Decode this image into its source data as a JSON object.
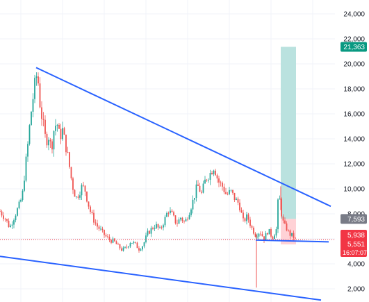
{
  "chart_data": {
    "type": "candlestick",
    "y_axis": {
      "min": 1000,
      "max": 25000,
      "position": "right",
      "ticks": [
        2000,
        4000,
        6000,
        8000,
        10000,
        12000,
        14000,
        16000,
        18000,
        20000,
        22000,
        24000
      ],
      "tick_labels": [
        "2,000",
        "4,000",
        "6,000",
        "8,000",
        "10,000",
        "12,000",
        "14,000",
        "16,000",
        "18,000",
        "20,000",
        "22,000",
        "24,000"
      ]
    },
    "grid": true,
    "colors": {
      "up": "#26a69a",
      "down": "#ef5350",
      "trendline": "#2962ff",
      "target_zone": "#b2dfdb",
      "stop_zone": "#ffcdd2",
      "last_price": "#f23645",
      "target_badge": "#089981",
      "stop_badge": "#787b86",
      "grid": "#f0f3fa"
    },
    "price_path": [
      [
        0,
        8200
      ],
      [
        8,
        7600
      ],
      [
        14,
        6900
      ],
      [
        20,
        7700
      ],
      [
        27,
        8600
      ],
      [
        32,
        9400
      ],
      [
        36,
        11500
      ],
      [
        40,
        13500
      ],
      [
        44,
        15800
      ],
      [
        48,
        17500
      ],
      [
        52,
        19100
      ],
      [
        55,
        18500
      ],
      [
        58,
        16500
      ],
      [
        62,
        15200
      ],
      [
        66,
        13800
      ],
      [
        70,
        14200
      ],
      [
        74,
        13200
      ],
      [
        78,
        14900
      ],
      [
        82,
        15300
      ],
      [
        86,
        14100
      ],
      [
        90,
        14700
      ],
      [
        94,
        13600
      ],
      [
        98,
        12500
      ],
      [
        102,
        11000
      ],
      [
        106,
        9800
      ],
      [
        110,
        9300
      ],
      [
        114,
        9700
      ],
      [
        118,
        10200
      ],
      [
        122,
        10000
      ],
      [
        126,
        9000
      ],
      [
        130,
        8200
      ],
      [
        135,
        7500
      ],
      [
        140,
        7000
      ],
      [
        146,
        6600
      ],
      [
        152,
        6200
      ],
      [
        158,
        5900
      ],
      [
        164,
        5800
      ],
      [
        170,
        5400
      ],
      [
        176,
        5100
      ],
      [
        182,
        5300
      ],
      [
        188,
        5800
      ],
      [
        194,
        5600
      ],
      [
        200,
        5200
      ],
      [
        206,
        5500
      ],
      [
        212,
        6400
      ],
      [
        218,
        6800
      ],
      [
        224,
        7100
      ],
      [
        230,
        6700
      ],
      [
        236,
        7400
      ],
      [
        242,
        8300
      ],
      [
        248,
        7900
      ],
      [
        254,
        7200
      ],
      [
        260,
        7700
      ],
      [
        266,
        7300
      ],
      [
        272,
        8100
      ],
      [
        278,
        9100
      ],
      [
        284,
        10300
      ],
      [
        290,
        9600
      ],
      [
        296,
        10800
      ],
      [
        302,
        11200
      ],
      [
        308,
        11800
      ],
      [
        314,
        10600
      ],
      [
        320,
        10200
      ],
      [
        326,
        9500
      ],
      [
        332,
        9800
      ],
      [
        338,
        9200
      ],
      [
        344,
        8800
      ],
      [
        350,
        7400
      ],
      [
        356,
        7800
      ],
      [
        362,
        6900
      ],
      [
        368,
        6300
      ],
      [
        374,
        6600
      ],
      [
        380,
        6000
      ],
      [
        386,
        6700
      ],
      [
        392,
        6100
      ],
      [
        398,
        6800
      ],
      [
        401,
        9900
      ],
      [
        404,
        8300
      ],
      [
        407,
        7400
      ],
      [
        410,
        7000
      ],
      [
        413,
        6800
      ],
      [
        416,
        6400
      ],
      [
        419,
        6300
      ],
      [
        422,
        6200
      ],
      [
        425,
        5938
      ]
    ],
    "wicks": [
      [
        369,
        2100
      ],
      [
        404,
        10200
      ]
    ],
    "trendlines": [
      {
        "from": [
          52,
          19700
        ],
        "to": [
          476,
          8600
        ]
      },
      {
        "from": [
          0,
          4600
        ],
        "to": [
          462,
          1100
        ]
      },
      {
        "from": [
          368,
          5900
        ],
        "to": [
          473,
          5760
        ]
      }
    ],
    "position": {
      "target_zone": [
        21363,
        7593
      ],
      "stop_zone": [
        7593,
        5551
      ],
      "x_start": 404,
      "x_end": 426
    },
    "price_labels": {
      "target": "21,363",
      "entry": "7,593",
      "last": "5,938",
      "stop": "5,551",
      "countdown": "16:07:07"
    },
    "last_price_value": 5938
  }
}
